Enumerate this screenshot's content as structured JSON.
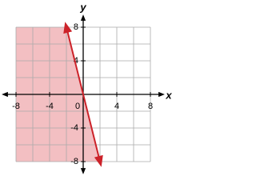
{
  "chart_data": {
    "type": "line",
    "x": [
      -2,
      2
    ],
    "values": [
      8,
      -8
    ],
    "color": "#cc2229",
    "shade": "left",
    "shade_color": "#f2b8bb",
    "xlim": [
      -8,
      8
    ],
    "ylim": [
      -8,
      8
    ],
    "xticks": [
      -8,
      -4,
      0,
      4,
      8
    ],
    "yticks": [
      -8,
      -4,
      4,
      8
    ],
    "grid": true,
    "grid_step": 2,
    "xlabel": "x",
    "ylabel": "y"
  }
}
